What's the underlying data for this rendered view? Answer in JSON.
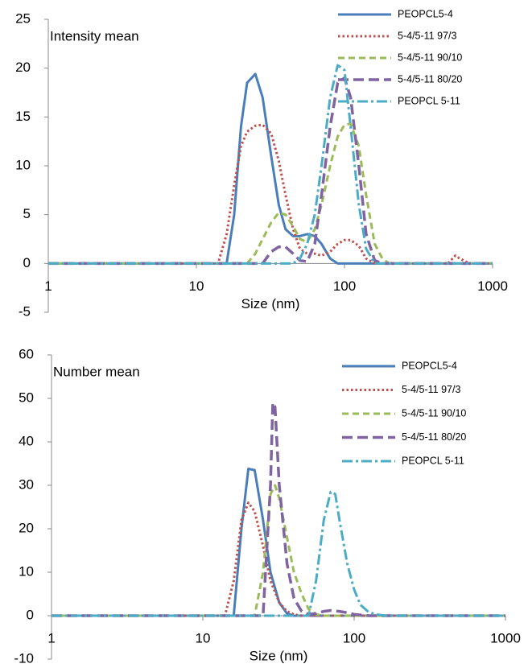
{
  "chart_data": [
    {
      "type": "line",
      "annotation": "Intensity mean",
      "xlabel": "Size (nm)",
      "xscale": "log",
      "legend": "upper right",
      "xlim": [
        1,
        1000
      ],
      "xticks": [
        1,
        10,
        100,
        1000
      ],
      "ylim": [
        -5,
        25
      ],
      "yticks": [
        -5,
        0,
        5,
        10,
        15,
        20,
        25
      ],
      "series": [
        {
          "name": "PEOPCL5-4",
          "color": "#4a7ebb",
          "style": "solid",
          "x": [
            1,
            10,
            16,
            18,
            20,
            22,
            25,
            28,
            32,
            36,
            40,
            45,
            50,
            56,
            63,
            70,
            80,
            90,
            1000
          ],
          "values": [
            0,
            0,
            0,
            5,
            14,
            18.5,
            19.4,
            17,
            11,
            6,
            3.5,
            2.8,
            2.8,
            3,
            2.8,
            2,
            0.5,
            0,
            0
          ]
        },
        {
          "name": "5-4/5-11 97/3",
          "color": "#c0504d",
          "style": "dotted",
          "x": [
            1,
            10,
            14,
            16,
            18,
            20,
            22,
            25,
            28,
            32,
            36,
            40,
            45,
            50,
            56,
            63,
            70,
            80,
            90,
            100,
            110,
            125,
            140,
            160,
            500,
            560,
            600,
            700,
            1000
          ],
          "values": [
            0,
            0,
            0,
            3,
            8,
            12,
            13.5,
            14.1,
            14.2,
            13.3,
            10.5,
            7,
            3.5,
            1.5,
            1,
            1,
            0.8,
            1.2,
            2,
            2.4,
            2.4,
            1.8,
            0.5,
            0,
            0,
            0.8,
            0.5,
            0,
            0
          ]
        },
        {
          "name": "5-4/5-11 90/10",
          "color": "#9bbb59",
          "style": "dashed",
          "x": [
            1,
            10,
            22,
            25,
            28,
            32,
            36,
            40,
            45,
            50,
            56,
            63,
            70,
            80,
            90,
            100,
            110,
            125,
            140,
            160,
            180,
            200,
            1000
          ],
          "values": [
            0,
            0,
            0,
            1,
            2.5,
            4.2,
            5.2,
            5,
            3.8,
            2.5,
            2.2,
            3.5,
            6,
            10,
            13,
            14.2,
            14.3,
            12,
            7,
            2,
            0.5,
            0,
            0
          ]
        },
        {
          "name": "5-4/5-11 80/20",
          "color": "#8064a2",
          "style": "longdash",
          "x": [
            1,
            10,
            28,
            32,
            36,
            40,
            45,
            50,
            56,
            63,
            70,
            80,
            90,
            100,
            110,
            125,
            140,
            160,
            180,
            1000
          ],
          "values": [
            0,
            0,
            0,
            1.2,
            1.7,
            1.7,
            1,
            0.3,
            0.2,
            2,
            7,
            14,
            18.5,
            19,
            17,
            10,
            3,
            0.3,
            0,
            0
          ]
        },
        {
          "name": "PEOPCL 5-11",
          "color": "#4bacc6",
          "style": "dashdot",
          "x": [
            1,
            10,
            45,
            50,
            56,
            63,
            70,
            80,
            90,
            100,
            110,
            125,
            140,
            160,
            1000
          ],
          "values": [
            0,
            0,
            0,
            0.5,
            2,
            5,
            10,
            17,
            20.3,
            19.8,
            14,
            6,
            1.5,
            0,
            0
          ]
        }
      ]
    },
    {
      "type": "line",
      "annotation": "Number mean",
      "xlabel": "Size (nm)",
      "xscale": "log",
      "legend": "upper right",
      "xlim": [
        1,
        1000
      ],
      "xticks": [
        1,
        10,
        100,
        1000
      ],
      "ylim": [
        -10,
        60
      ],
      "yticks": [
        -10,
        0,
        10,
        20,
        30,
        40,
        50,
        60
      ],
      "series": [
        {
          "name": "PEOPCL5-4",
          "color": "#4a7ebb",
          "style": "solid",
          "x": [
            1,
            10,
            16,
            18,
            20,
            22,
            25,
            28,
            32,
            36,
            40,
            1000
          ],
          "values": [
            0,
            0,
            0,
            20,
            33.8,
            33.5,
            22,
            10,
            3,
            0.5,
            0,
            0
          ]
        },
        {
          "name": "5-4/5-11 97/3",
          "color": "#c0504d",
          "style": "dotted",
          "x": [
            1,
            10,
            14,
            16,
            18,
            20,
            22,
            25,
            28,
            32,
            36,
            40,
            45,
            1000
          ],
          "values": [
            0,
            0,
            0,
            8,
            22,
            26,
            24,
            16,
            8,
            3,
            1,
            0.3,
            0,
            0
          ]
        },
        {
          "name": "5-4/5-11 90/10",
          "color": "#9bbb59",
          "style": "dashed",
          "x": [
            1,
            10,
            22,
            25,
            28,
            30,
            32,
            36,
            40,
            45,
            50,
            56,
            63,
            1000
          ],
          "values": [
            0,
            0,
            0,
            10,
            28,
            30,
            27,
            18,
            10,
            5,
            1.5,
            0.3,
            0,
            0
          ]
        },
        {
          "name": "5-4/5-11 80/20",
          "color": "#8064a2",
          "style": "longdash",
          "x": [
            1,
            10,
            25,
            28,
            29,
            30,
            32,
            36,
            40,
            45,
            50,
            56,
            63,
            70,
            80,
            90,
            100,
            125,
            1000
          ],
          "values": [
            0,
            0,
            0,
            30,
            49,
            48,
            30,
            12,
            4,
            1,
            0.3,
            0.5,
            1,
            1.2,
            1,
            0.7,
            0.3,
            0,
            0
          ]
        },
        {
          "name": "PEOPCL 5-11",
          "color": "#4bacc6",
          "style": "dashdot",
          "x": [
            1,
            10,
            50,
            56,
            63,
            70,
            75,
            80,
            90,
            100,
            110,
            125,
            140,
            160,
            1000
          ],
          "values": [
            0,
            0,
            0,
            8,
            22,
            28.5,
            28,
            22,
            12,
            6,
            2.5,
            0.8,
            0.3,
            0,
            0
          ]
        }
      ]
    }
  ]
}
